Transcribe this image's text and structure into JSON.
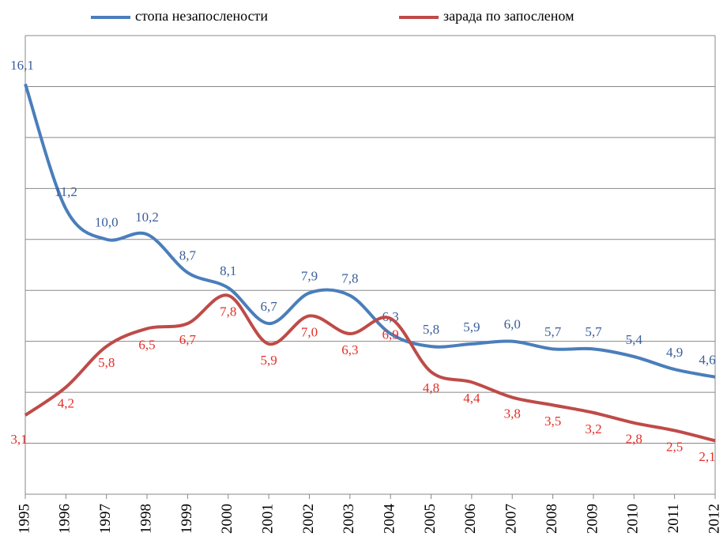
{
  "chart_data": {
    "type": "line",
    "categories": [
      "1995",
      "1996",
      "1997",
      "1998",
      "1999",
      "2000",
      "2001",
      "2002",
      "2003",
      "2004",
      "2005",
      "2006",
      "2007",
      "2008",
      "2009",
      "2010",
      "2011",
      "2012"
    ],
    "series": [
      {
        "name": "стопа незапослености",
        "color": "#4a7ebb",
        "label_color": "#3b5e9a",
        "values": [
          16.1,
          11.2,
          10.0,
          10.2,
          8.7,
          8.1,
          6.7,
          7.9,
          7.8,
          6.3,
          5.8,
          5.9,
          6.0,
          5.7,
          5.7,
          5.4,
          4.9,
          4.6
        ],
        "value_labels": [
          "16,1",
          "11,2",
          "10,0",
          "10,2",
          "8,7",
          "8,1",
          "6,7",
          "7,9",
          "7,8",
          "6,3",
          "5,8",
          "5,9",
          "6,0",
          "5,7",
          "5,7",
          "5,4",
          "4,9",
          "4,6"
        ]
      },
      {
        "name": "зарада по запосленом",
        "color": "#be4b48",
        "label_color": "#e0302a",
        "values": [
          3.1,
          4.2,
          5.8,
          6.5,
          6.7,
          7.8,
          5.9,
          7.0,
          6.3,
          6.9,
          4.8,
          4.4,
          3.8,
          3.5,
          3.2,
          2.8,
          2.5,
          2.1
        ],
        "value_labels": [
          "3,1",
          "4,2",
          "5,8",
          "6,5",
          "6,7",
          "7,8",
          "5,9",
          "7,0",
          "6,3",
          "6,9",
          "4,8",
          "4,4",
          "3,8",
          "3,5",
          "3,2",
          "2,8",
          "2,5",
          "2,1"
        ]
      }
    ],
    "ylim": [
      0,
      18
    ],
    "yticks": [
      0,
      2,
      4,
      6,
      8,
      10,
      12,
      14,
      16,
      18
    ],
    "grid": true,
    "legend": "top"
  }
}
